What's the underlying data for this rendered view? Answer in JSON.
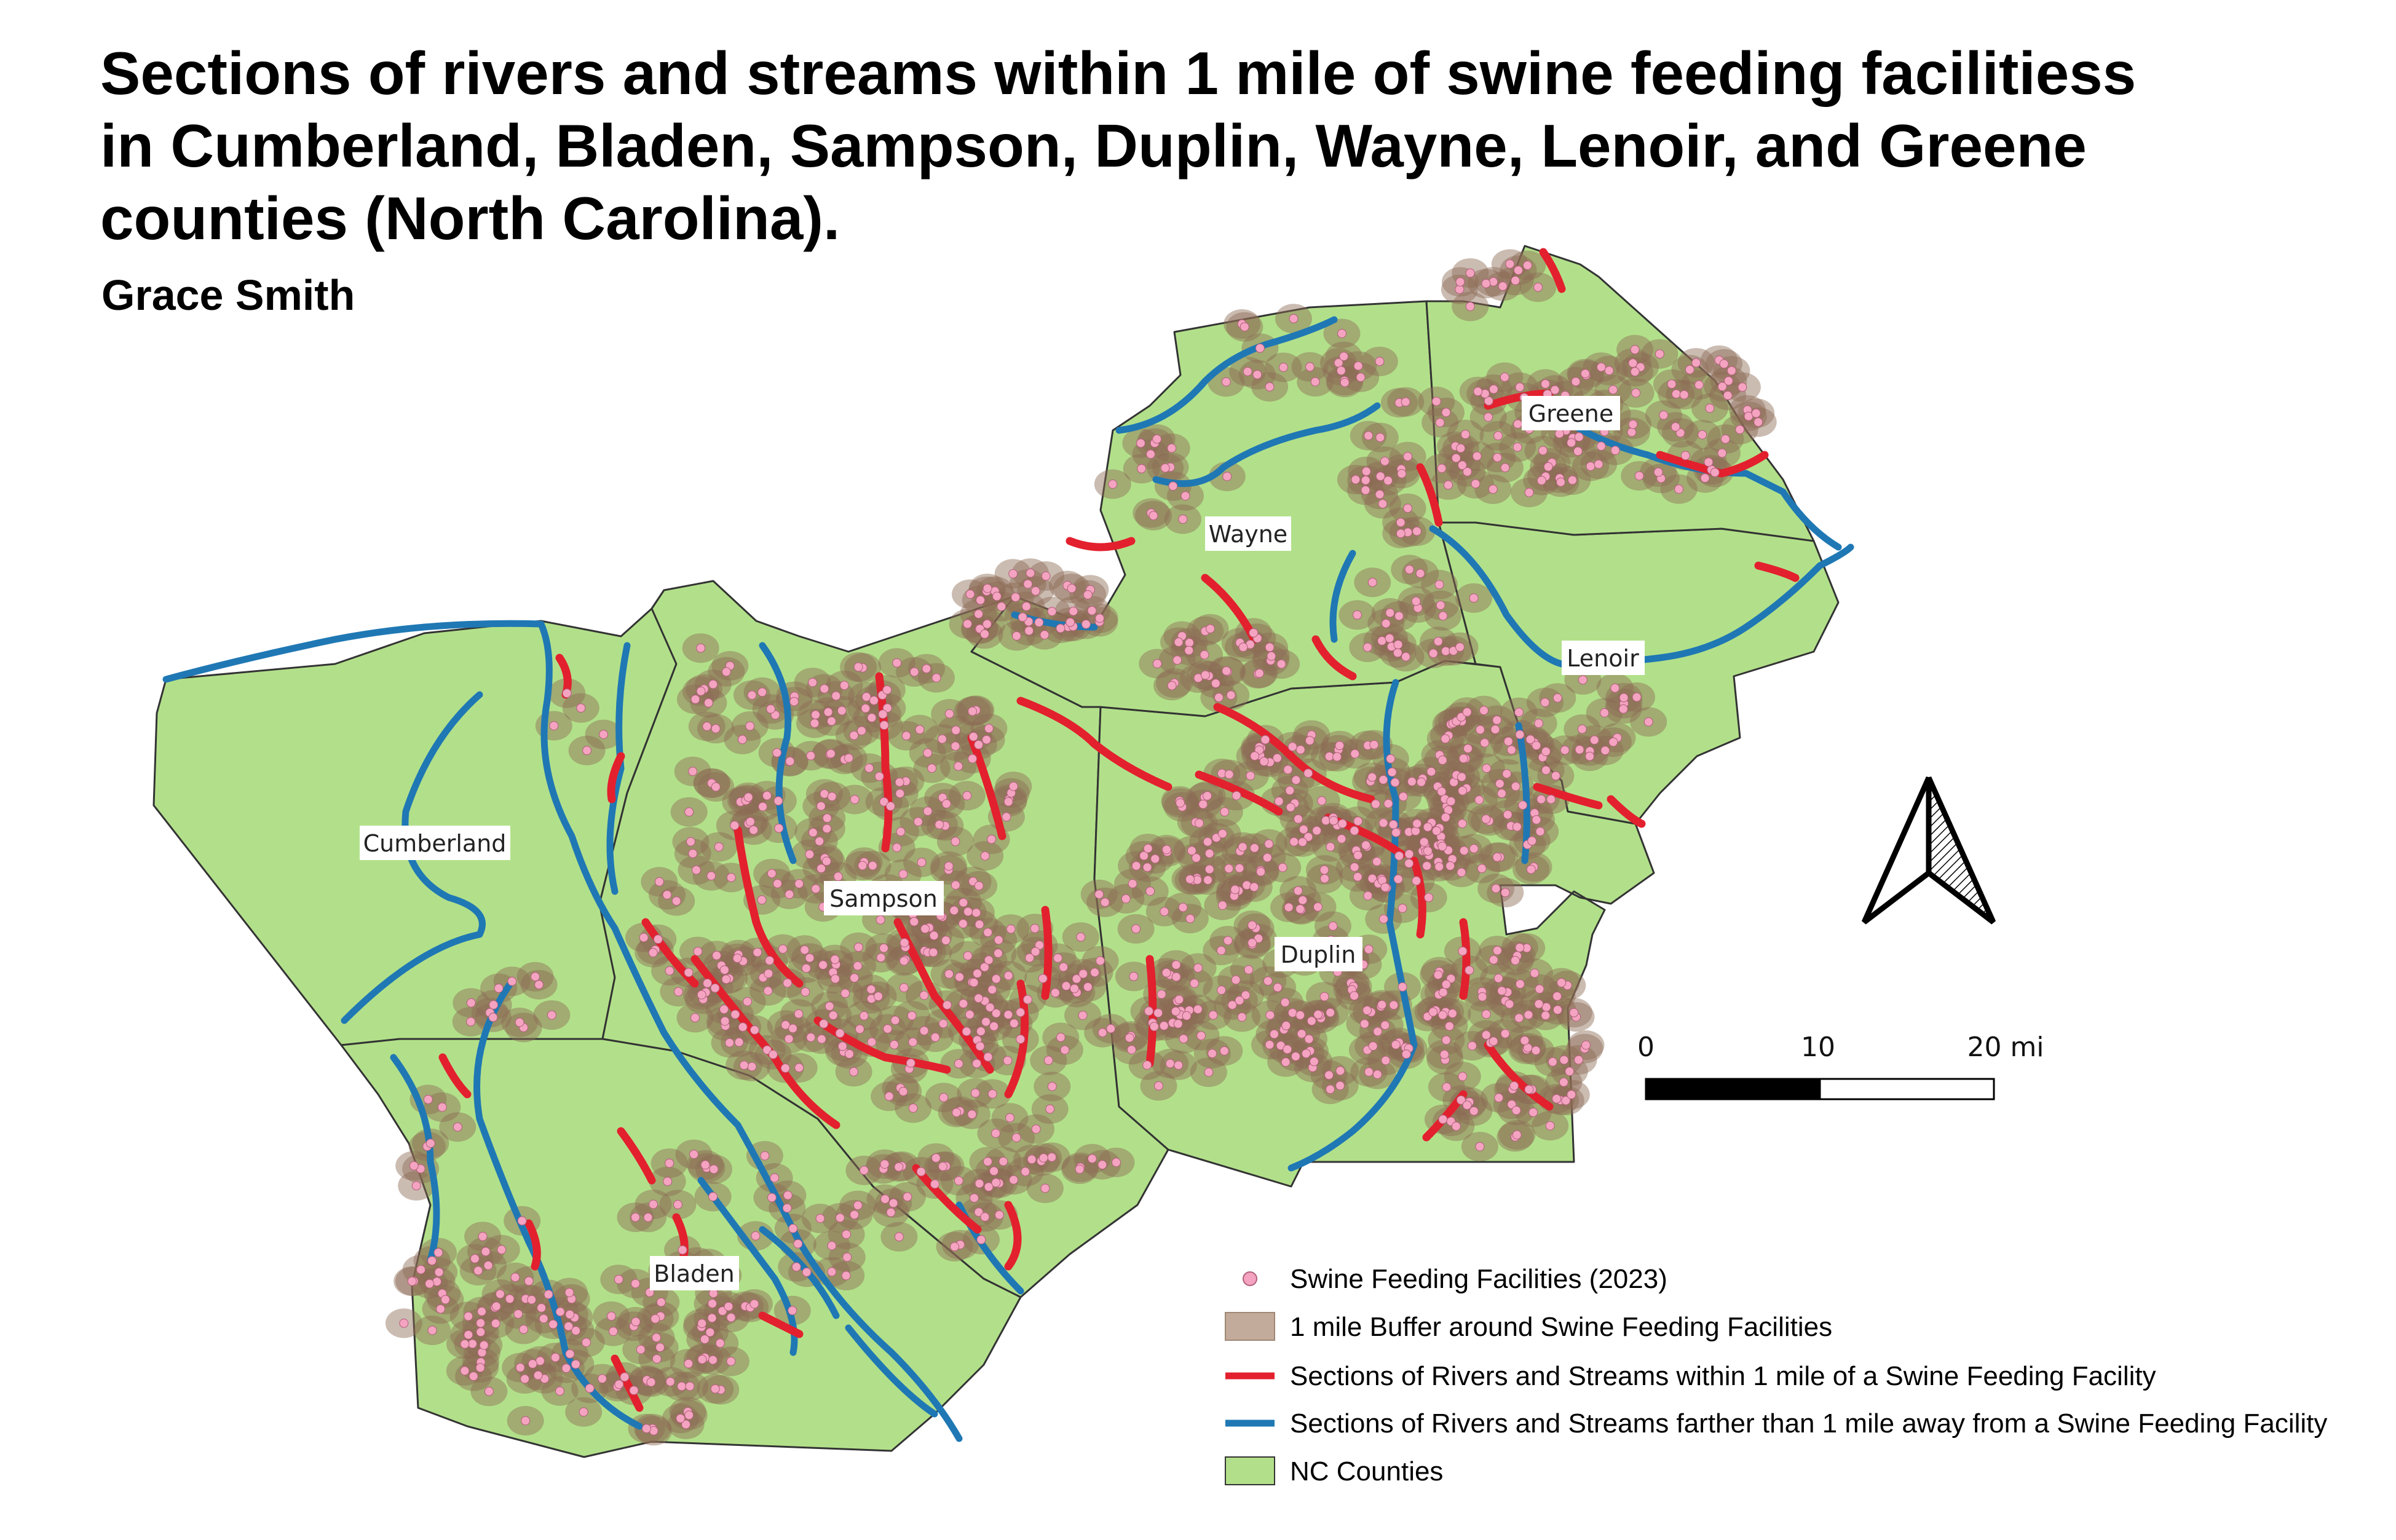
{
  "title_lines": [
    "Sections of rivers and streams within 1 mile of swine feeding facilitiess",
    "in Cumberland,  Bladen,  Sampson,  Duplin,  Wayne,  Lenoir, and Greene",
    "counties (North Carolina)."
  ],
  "author": "Grace Smith",
  "counties": [
    {
      "name": "Cumberland"
    },
    {
      "name": "Sampson"
    },
    {
      "name": "Bladen"
    },
    {
      "name": "Duplin"
    },
    {
      "name": "Wayne"
    },
    {
      "name": "Lenoir"
    },
    {
      "name": "Greene"
    }
  ],
  "scale_bar": {
    "labels": [
      "0",
      "10",
      "20 mi"
    ]
  },
  "legend": {
    "items": [
      {
        "label": "Swine Feeding Facilities (2023)",
        "symbol": "facility"
      },
      {
        "label": "1 mile Buffer around Swine Feeding Facilities",
        "symbol": "buffer"
      },
      {
        "label": "Sections of Rivers and Streams within 1 mile of a Swine Feeding Facility",
        "symbol": "river-near"
      },
      {
        "label": "Sections of Rivers and Streams farther than 1 mile away from a Swine Feeding Facility",
        "symbol": "river-far"
      },
      {
        "label": "NC Counties",
        "symbol": "county"
      }
    ]
  },
  "colors": {
    "county_fill": "#b2e08a",
    "county_stroke": "#333333",
    "buffer_fill": "#8b6a55",
    "buffer_opacity": "0.45",
    "facility_fill": "#f4a3c0",
    "river_near": "#e3202e",
    "river_far": "#1f78b4",
    "north_arrow": "#000000"
  },
  "icons": {
    "north_arrow": "north-arrow-icon"
  }
}
